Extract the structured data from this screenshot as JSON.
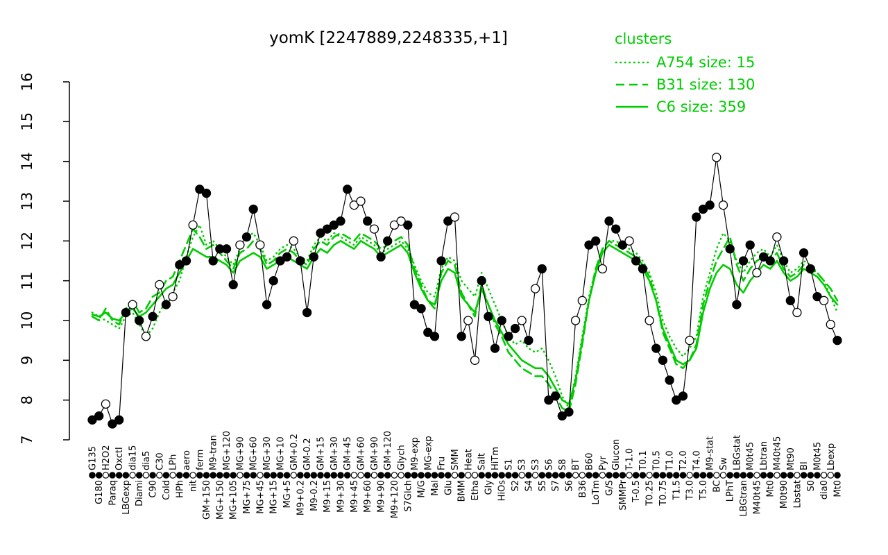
{
  "chart_data": {
    "type": "line",
    "title": "yomK [2247889,2248335,+1]",
    "ylim": [
      7,
      16
    ],
    "yticks": [
      7,
      8,
      9,
      10,
      11,
      12,
      13,
      14,
      15,
      16
    ],
    "grid": false,
    "colors": {
      "cluster": "#00CC00",
      "gene": "#000000"
    },
    "legend": {
      "title": "clusters",
      "position": "top-right",
      "items": [
        {
          "label": "A754 size: 15",
          "cluster": "A754",
          "size": 15,
          "linestyle": "dotted"
        },
        {
          "label": "B31 size: 130",
          "cluster": "B31",
          "size": 130,
          "linestyle": "dashed"
        },
        {
          "label": "C6 size: 359",
          "cluster": "C6",
          "size": 359,
          "linestyle": "solid"
        }
      ]
    },
    "categories": [
      "G135",
      "G180",
      "H2O2",
      "Paraq",
      "Oxctl",
      "LBGexp",
      "dia15",
      "Diami",
      "dia5",
      "C90",
      "C30",
      "Cold",
      "LPh",
      "HPh",
      "aero",
      "nit",
      "ferm",
      "GM+150",
      "M9-tran",
      "MG+150",
      "MG+120",
      "MG+105",
      "MG+90",
      "MG+75",
      "MG+60",
      "MG+45",
      "MG+30",
      "MG+15",
      "MG+10",
      "MG+5",
      "GM+0.2",
      "M9+0.2",
      "GM-0.2",
      "M9-0.2",
      "GM+15",
      "M9+15",
      "GM+30",
      "M9+30",
      "GM+45",
      "M9+45",
      "GM+60",
      "M9+60",
      "GM+90",
      "M9+90",
      "GM+120",
      "M9+120",
      "Glych",
      "S7Glch",
      "M9-exp",
      "M/G",
      "MG-exp",
      "Mal",
      "Fru",
      "Glu",
      "SMM",
      "BMM",
      "Heat",
      "Etha",
      "Salt",
      "Gly",
      "HiTm",
      "HiOs",
      "S1",
      "S2",
      "S3",
      "S4",
      "S3",
      "S5",
      "S6",
      "S7",
      "S8",
      "S6",
      "BT",
      "B36",
      "B60",
      "LoTm",
      "Pyr",
      "G/S",
      "Glucon",
      "SMMPr",
      "T-1.0",
      "T-0.5",
      "T0.1",
      "T0.25",
      "T0.5",
      "T0.75",
      "T1.0",
      "T1.5",
      "T2.0",
      "T3.0",
      "T4.0",
      "T5.0",
      "M9-stat",
      "BC",
      "Sw",
      "LPhT",
      "LBGstat",
      "LBGtran",
      "M0t45",
      "M40t45",
      "Lbtran",
      "Mt0",
      "M40t45",
      "M0t90",
      "Mt90",
      "Lbstat",
      "BI",
      "S0",
      "M0t45",
      "dia0",
      "Lbexp",
      "Mt0"
    ],
    "point_fills": [
      "b",
      "b",
      "w",
      "b",
      "b",
      "b",
      "w",
      "b",
      "w",
      "b",
      "w",
      "b",
      "w",
      "b",
      "b",
      "w",
      "b",
      "b",
      "b",
      "b",
      "b",
      "b",
      "w",
      "b",
      "b",
      "w",
      "b",
      "b",
      "b",
      "b",
      "w",
      "b",
      "b",
      "b",
      "b",
      "b",
      "b",
      "b",
      "b",
      "w",
      "w",
      "b",
      "w",
      "b",
      "b",
      "w",
      "w",
      "b",
      "b",
      "b",
      "b",
      "b",
      "b",
      "b",
      "w",
      "b",
      "w",
      "w",
      "b",
      "b",
      "b",
      "b",
      "b",
      "b",
      "w",
      "b",
      "w",
      "b",
      "b",
      "b",
      "b",
      "b",
      "w",
      "w",
      "b",
      "b",
      "w",
      "b",
      "b",
      "b",
      "w",
      "b",
      "b",
      "w",
      "b",
      "b",
      "b",
      "b",
      "b",
      "w",
      "b",
      "b",
      "b",
      "w",
      "w",
      "b",
      "b",
      "b",
      "b",
      "w",
      "b",
      "b",
      "w",
      "b",
      "b",
      "w",
      "b",
      "b",
      "b",
      "w",
      "w",
      "b"
    ],
    "series": [
      {
        "name": "yomK",
        "role": "gene",
        "values": [
          7.5,
          7.6,
          7.9,
          7.4,
          7.5,
          10.2,
          10.4,
          10.0,
          9.6,
          10.1,
          10.9,
          10.4,
          10.6,
          11.4,
          11.5,
          12.4,
          13.3,
          13.2,
          11.5,
          11.8,
          11.8,
          10.9,
          11.9,
          12.1,
          12.8,
          11.9,
          10.4,
          11.0,
          11.5,
          11.6,
          12.0,
          11.5,
          10.2,
          11.6,
          12.2,
          12.3,
          12.4,
          12.5,
          13.3,
          12.9,
          13.0,
          12.5,
          12.3,
          11.6,
          12.0,
          12.4,
          12.5,
          12.4,
          10.4,
          10.3,
          9.7,
          9.6,
          11.5,
          12.5,
          12.6,
          9.6,
          10.0,
          9.0,
          11.0,
          10.1,
          9.3,
          10.0,
          9.6,
          9.8,
          10.0,
          9.5,
          10.8,
          11.3,
          8.0,
          8.1,
          7.6,
          7.7,
          10.0,
          10.5,
          11.9,
          12.0,
          11.3,
          12.5,
          12.3,
          11.9,
          12.0,
          11.5,
          11.3,
          10.0,
          9.3,
          9.0,
          8.5,
          8.0,
          8.1,
          9.5,
          12.6,
          12.8,
          12.9,
          14.1,
          12.9,
          11.8,
          10.4,
          11.5,
          11.9,
          11.2,
          11.6,
          11.5,
          12.1,
          11.5,
          10.5,
          10.2,
          11.7,
          11.3,
          10.6,
          10.5,
          9.9,
          9.5
        ]
      },
      {
        "name": "A754",
        "role": "cluster",
        "linestyle": "dotted",
        "values": [
          10.2,
          10.1,
          10.0,
          9.9,
          9.8,
          10.1,
          10.2,
          9.9,
          9.6,
          9.8,
          10.2,
          10.5,
          10.7,
          11.0,
          11.6,
          12.1,
          12.4,
          11.9,
          12.0,
          11.8,
          11.6,
          11.4,
          11.8,
          12.1,
          12.2,
          11.9,
          11.5,
          11.6,
          11.8,
          11.9,
          11.8,
          11.6,
          11.5,
          11.9,
          12.1,
          12.0,
          12.2,
          12.1,
          12.0,
          11.9,
          12.1,
          12.0,
          11.9,
          11.7,
          11.8,
          11.9,
          12.0,
          11.8,
          11.4,
          11.0,
          10.7,
          10.6,
          11.3,
          11.6,
          11.5,
          11.0,
          10.8,
          10.6,
          11.2,
          10.8,
          10.4,
          10.0,
          9.6,
          9.4,
          9.5,
          9.3,
          9.2,
          9.3,
          9.0,
          8.6,
          8.1,
          7.8,
          8.6,
          9.6,
          10.6,
          11.3,
          11.8,
          12.0,
          12.0,
          11.9,
          11.8,
          11.7,
          11.5,
          11.2,
          10.7,
          10.0,
          9.6,
          9.3,
          9.1,
          9.3,
          9.6,
          10.6,
          11.2,
          11.8,
          12.2,
          12.0,
          11.5,
          11.2,
          11.5,
          11.7,
          11.8,
          11.6,
          11.9,
          11.5,
          11.2,
          11.3,
          11.5,
          11.4,
          11.2,
          11.0,
          10.6,
          10.2
        ]
      },
      {
        "name": "B31",
        "role": "cluster",
        "linestyle": "dashed",
        "values": [
          10.1,
          10.0,
          10.3,
          10.0,
          9.9,
          10.3,
          10.5,
          10.2,
          10.3,
          10.6,
          10.7,
          11.0,
          11.1,
          11.5,
          11.9,
          12.3,
          12.1,
          11.8,
          11.9,
          11.7,
          11.5,
          11.3,
          11.7,
          11.8,
          12.0,
          11.8,
          11.4,
          11.5,
          11.7,
          11.8,
          11.7,
          11.5,
          11.4,
          11.8,
          12.0,
          11.9,
          12.1,
          12.2,
          12.1,
          12.0,
          12.2,
          12.1,
          12.0,
          11.8,
          11.9,
          12.0,
          12.1,
          11.9,
          11.3,
          10.9,
          10.5,
          10.3,
          11.2,
          11.5,
          11.4,
          10.7,
          10.4,
          10.1,
          10.9,
          10.4,
          9.9,
          9.6,
          9.2,
          9.0,
          8.8,
          8.7,
          8.6,
          8.6,
          8.4,
          8.1,
          7.8,
          7.7,
          8.4,
          9.4,
          10.5,
          11.3,
          11.8,
          12.0,
          11.9,
          11.8,
          11.7,
          11.6,
          11.4,
          11.1,
          10.5,
          9.7,
          9.3,
          8.9,
          8.8,
          9.0,
          9.4,
          10.4,
          11.0,
          11.5,
          11.8,
          12.1,
          11.4,
          11.0,
          11.3,
          11.5,
          11.6,
          11.5,
          11.7,
          11.3,
          11.1,
          11.2,
          11.4,
          11.3,
          11.2,
          11.0,
          10.8,
          10.5
        ]
      },
      {
        "name": "C6",
        "role": "cluster",
        "linestyle": "solid",
        "values": [
          10.15,
          10.1,
          10.2,
          10.05,
          10.0,
          10.2,
          10.3,
          10.1,
          10.2,
          10.4,
          10.6,
          10.8,
          10.9,
          11.2,
          11.5,
          11.8,
          11.7,
          11.6,
          11.6,
          11.5,
          11.4,
          11.2,
          11.5,
          11.6,
          11.7,
          11.6,
          11.3,
          11.4,
          11.5,
          11.6,
          11.5,
          11.4,
          11.3,
          11.6,
          11.8,
          11.7,
          11.9,
          12.0,
          11.9,
          11.8,
          12.0,
          11.9,
          11.8,
          11.6,
          11.7,
          11.8,
          11.9,
          11.7,
          11.2,
          10.8,
          10.5,
          10.4,
          11.0,
          11.3,
          11.2,
          10.6,
          10.4,
          10.2,
          10.8,
          10.4,
          10.0,
          9.7,
          9.4,
          9.2,
          9.0,
          8.9,
          8.8,
          8.8,
          8.6,
          8.3,
          8.0,
          7.9,
          8.5,
          9.5,
          10.5,
          11.2,
          11.7,
          11.9,
          11.8,
          11.7,
          11.6,
          11.5,
          11.3,
          11.0,
          10.5,
          9.8,
          9.4,
          9.0,
          8.9,
          9.0,
          9.3,
          10.2,
          10.8,
          11.2,
          11.4,
          11.3,
          10.9,
          10.7,
          11.0,
          11.2,
          11.4,
          11.3,
          11.5,
          11.2,
          11.0,
          11.1,
          11.3,
          11.2,
          11.1,
          10.9,
          10.6,
          10.4
        ]
      }
    ]
  }
}
